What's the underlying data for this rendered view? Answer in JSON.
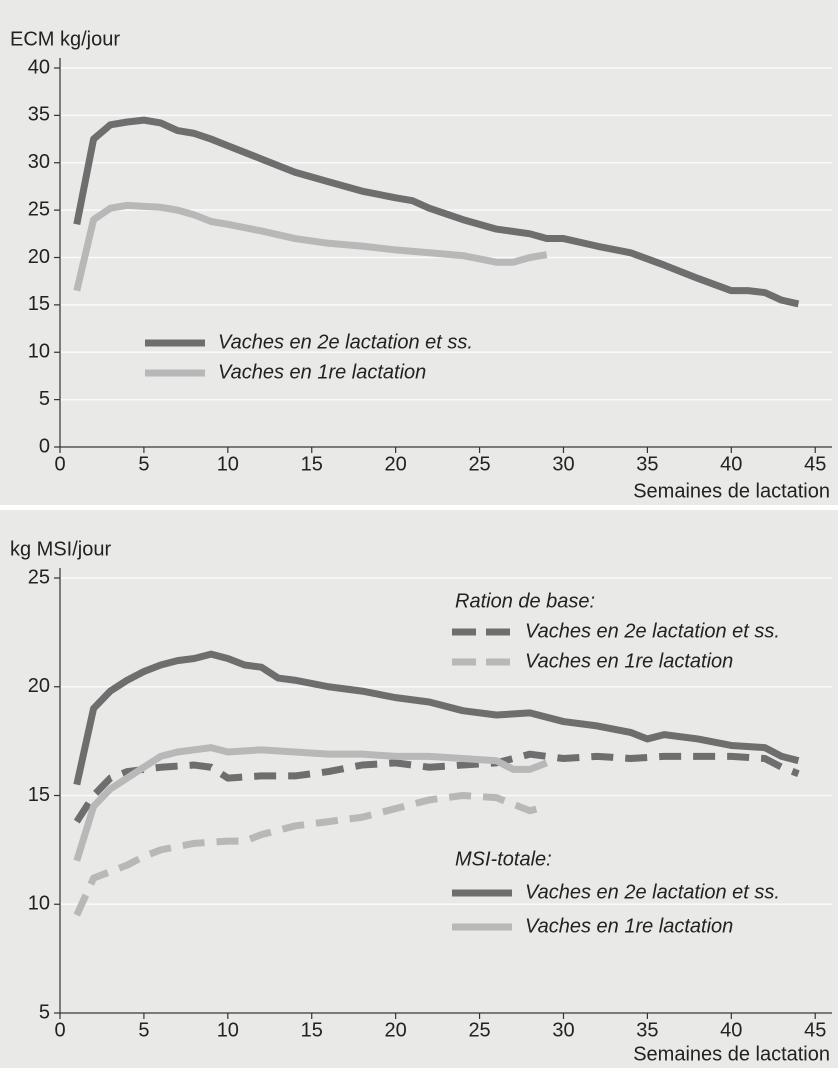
{
  "chart_data": [
    {
      "type": "line",
      "y_label": "ECM kg/jour",
      "x_label": "Semaines de lactation",
      "xlim": [
        0,
        46
      ],
      "xticks": [
        0,
        5,
        10,
        15,
        20,
        25,
        30,
        35,
        40,
        45
      ],
      "ylim": [
        0,
        40
      ],
      "yticks": [
        0,
        5,
        10,
        15,
        20,
        25,
        30,
        35,
        40
      ],
      "grid": true,
      "series": [
        {
          "name": "Vaches en 2e lactation et ss.",
          "color": "#6e6e6e",
          "style": "solid",
          "x": [
            1,
            2,
            3,
            4,
            5,
            6,
            7,
            8,
            9,
            10,
            12,
            14,
            16,
            18,
            20,
            21,
            22,
            24,
            26,
            28,
            29,
            30,
            32,
            34,
            36,
            38,
            40,
            41,
            42,
            43,
            44
          ],
          "values": [
            23.5,
            32.5,
            34,
            34.3,
            34.5,
            34.2,
            33.4,
            33.1,
            32.5,
            31.8,
            30.4,
            29,
            28,
            27,
            26.3,
            26,
            25.2,
            24,
            23,
            22.5,
            22,
            22,
            21.2,
            20.5,
            19.2,
            17.8,
            16.5,
            16.5,
            16.3,
            15.5,
            15.1
          ]
        },
        {
          "name": "Vaches en 1re lactation",
          "color": "#b8b8b8",
          "style": "solid",
          "x": [
            1,
            2,
            3,
            4,
            5,
            6,
            7,
            8,
            9,
            10,
            12,
            14,
            16,
            18,
            20,
            22,
            24,
            26,
            27,
            28,
            29
          ],
          "values": [
            16.5,
            24,
            25.2,
            25.5,
            25.4,
            25.3,
            25,
            24.5,
            23.8,
            23.5,
            22.8,
            22,
            21.5,
            21.2,
            20.8,
            20.5,
            20.2,
            19.5,
            19.5,
            20,
            20.3
          ]
        }
      ]
    },
    {
      "type": "line",
      "y_label": "kg MSI/jour",
      "x_label": "Semaines de lactation",
      "xlim": [
        0,
        46
      ],
      "xticks": [
        0,
        5,
        10,
        15,
        20,
        25,
        30,
        35,
        40,
        45
      ],
      "ylim": [
        5,
        25
      ],
      "yticks": [
        5,
        10,
        15,
        20,
        25
      ],
      "grid": true,
      "legend_titles": [
        "Ration de base:",
        "MSI-totale:"
      ],
      "series": [
        {
          "name": "Vaches en 2e lactation et ss.",
          "color": "#6e6e6e",
          "style": "dashed",
          "x": [
            1,
            2,
            3,
            4,
            6,
            8,
            9,
            10,
            12,
            14,
            16,
            18,
            20,
            22,
            24,
            26,
            28,
            30,
            32,
            34,
            36,
            38,
            40,
            42,
            43,
            44
          ],
          "values": [
            13.8,
            15,
            15.8,
            16.1,
            16.3,
            16.4,
            16.3,
            15.8,
            15.9,
            15.9,
            16.1,
            16.4,
            16.5,
            16.3,
            16.4,
            16.5,
            16.9,
            16.7,
            16.8,
            16.7,
            16.8,
            16.8,
            16.8,
            16.7,
            16.3,
            16
          ]
        },
        {
          "name": "Vaches en 1re lactation",
          "color": "#b8b8b8",
          "style": "dashed",
          "x": [
            1,
            2,
            3,
            4,
            5,
            6,
            8,
            10,
            11,
            12,
            14,
            16,
            18,
            20,
            22,
            24,
            26,
            27,
            28,
            29
          ],
          "values": [
            9.5,
            11.2,
            11.5,
            11.8,
            12.2,
            12.5,
            12.8,
            12.9,
            12.9,
            13.2,
            13.6,
            13.8,
            14,
            14.4,
            14.8,
            15,
            14.9,
            14.6,
            14.3,
            14.5
          ]
        },
        {
          "name": "Vaches en 2e lactation et ss.",
          "color": "#6e6e6e",
          "style": "solid",
          "x": [
            1,
            2,
            3,
            4,
            5,
            6,
            7,
            8,
            9,
            10,
            11,
            12,
            13,
            14,
            16,
            18,
            20,
            22,
            24,
            26,
            28,
            30,
            32,
            34,
            35,
            36,
            38,
            40,
            42,
            43,
            44
          ],
          "values": [
            15.5,
            19,
            19.8,
            20.3,
            20.7,
            21,
            21.2,
            21.3,
            21.5,
            21.3,
            21,
            20.9,
            20.4,
            20.3,
            20,
            19.8,
            19.5,
            19.3,
            18.9,
            18.7,
            18.8,
            18.4,
            18.2,
            17.9,
            17.6,
            17.8,
            17.6,
            17.3,
            17.2,
            16.8,
            16.6
          ]
        },
        {
          "name": "Vaches en 1re lactation",
          "color": "#b8b8b8",
          "style": "solid",
          "x": [
            1,
            2,
            3,
            4,
            5,
            6,
            7,
            8,
            9,
            10,
            12,
            14,
            16,
            18,
            20,
            22,
            24,
            26,
            27,
            28,
            29
          ],
          "values": [
            12,
            14.5,
            15.3,
            15.8,
            16.3,
            16.8,
            17,
            17.1,
            17.2,
            17,
            17.1,
            17,
            16.9,
            16.9,
            16.8,
            16.8,
            16.7,
            16.6,
            16.2,
            16.2,
            16.5
          ]
        }
      ]
    }
  ]
}
